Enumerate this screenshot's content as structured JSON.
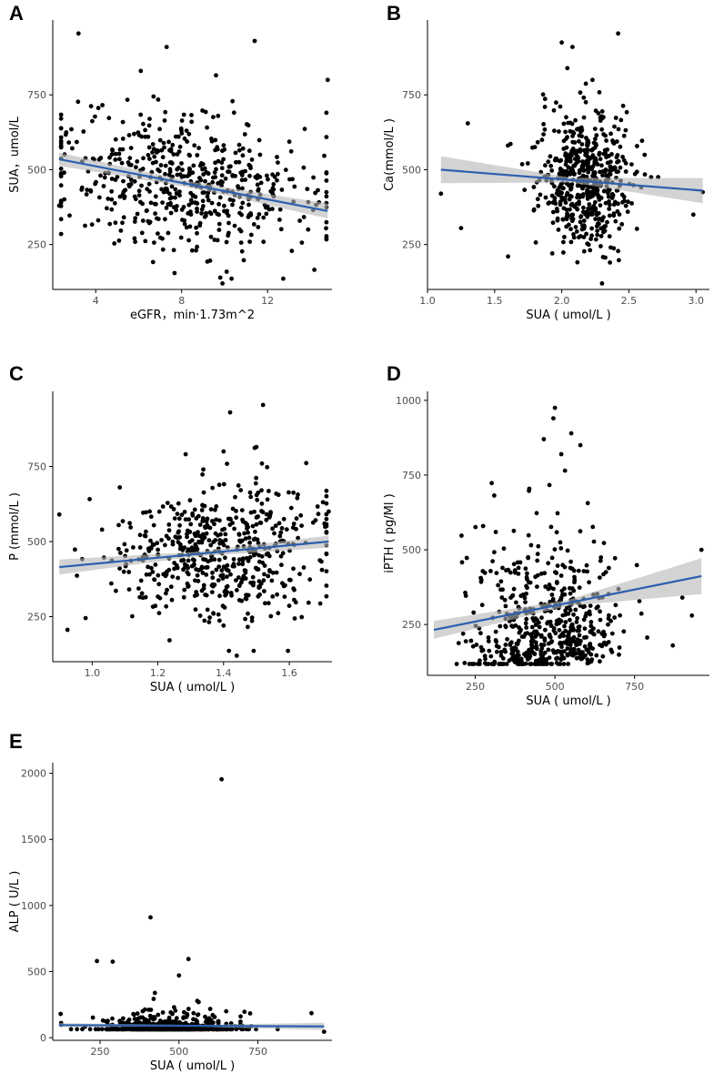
{
  "figure": {
    "panels": [
      "A",
      "B",
      "C",
      "D",
      "E"
    ]
  },
  "chart_data": [
    {
      "type": "scatter",
      "panel": "A",
      "xlabel": "eGFR，min·1.73m^2",
      "ylabel": "SUA，umol/L",
      "xlim": [
        2,
        15
      ],
      "ylim": [
        100,
        1000
      ],
      "xticks": [
        4,
        8,
        12
      ],
      "yticks": [
        250,
        500,
        750
      ],
      "x_center": 8.2,
      "x_spread": 2.6,
      "x_skew": 1.5,
      "y_center": 455,
      "y_spread": 110,
      "n_points": 560,
      "fit": {
        "x": [
          2.3,
          14.8
        ],
        "y": [
          535,
          362
        ]
      },
      "ci_halfwidth": [
        22,
        10,
        25
      ],
      "outliers": [
        [
          3.2,
          955
        ],
        [
          7.3,
          910
        ],
        [
          11.4,
          930
        ],
        [
          9.6,
          815
        ],
        [
          14.8,
          800
        ],
        [
          6.1,
          830
        ],
        [
          9.9,
          120
        ],
        [
          2.3,
          380
        ]
      ]
    },
    {
      "type": "scatter",
      "panel": "B",
      "xlabel": "SUA ( umol/L )",
      "ylabel": "Ca(mmol/L )",
      "xlim": [
        1.0,
        3.1
      ],
      "ylim": [
        100,
        1000
      ],
      "xticks": [
        "1.0",
        "1.5",
        "2.0",
        "2.5",
        "3.0"
      ],
      "yticks": [
        250,
        500,
        750
      ],
      "x_center": 2.17,
      "x_spread": 0.17,
      "x_skew": 1.0,
      "y_center": 470,
      "y_spread": 115,
      "n_points": 560,
      "fit": {
        "x": [
          1.1,
          3.05
        ],
        "y": [
          500,
          430
        ]
      },
      "ci_halfwidth": [
        45,
        8,
        42
      ],
      "outliers": [
        [
          2.42,
          955
        ],
        [
          2.0,
          925
        ],
        [
          2.08,
          910
        ],
        [
          1.1,
          420
        ],
        [
          1.25,
          305
        ],
        [
          1.6,
          210
        ],
        [
          2.98,
          350
        ],
        [
          3.05,
          425
        ],
        [
          2.3,
          120
        ],
        [
          1.3,
          655
        ]
      ]
    },
    {
      "type": "scatter",
      "panel": "C",
      "xlabel": "SUA ( umol/L )",
      "ylabel": "P (mmol/L )",
      "xlim": [
        0.88,
        1.73
      ],
      "ylim": [
        100,
        1000
      ],
      "xticks": [
        "1.0",
        "1.2",
        "1.4",
        "1.6"
      ],
      "yticks": [
        250,
        500,
        750
      ],
      "x_center": 1.4,
      "x_spread": 0.14,
      "x_skew": 1.3,
      "y_center": 465,
      "y_spread": 115,
      "n_points": 560,
      "fit": {
        "x": [
          0.9,
          1.72
        ],
        "y": [
          415,
          500
        ]
      },
      "ci_halfwidth": [
        25,
        8,
        20
      ],
      "outliers": [
        [
          1.42,
          930
        ],
        [
          1.52,
          955
        ],
        [
          1.4,
          800
        ],
        [
          1.5,
          815
        ],
        [
          0.9,
          590
        ],
        [
          0.98,
          245
        ],
        [
          1.44,
          120
        ],
        [
          1.72,
          600
        ]
      ]
    },
    {
      "type": "scatter",
      "panel": "D",
      "xlabel": "SUA ( umol/L )",
      "ylabel": "iPTH ( pg/Ml )",
      "xlim": [
        100,
        985
      ],
      "ylim": [
        80,
        1030
      ],
      "xticks": [
        250,
        500,
        750
      ],
      "yticks": [
        250,
        500,
        750,
        1000
      ],
      "x_center": 470,
      "x_spread": 115,
      "x_skew": 1.0,
      "y_center": 280,
      "y_spread": 120,
      "n_points": 580,
      "fit": {
        "x": [
          120,
          960
        ],
        "y": [
          232,
          412
        ]
      },
      "ci_halfwidth": [
        30,
        10,
        60
      ],
      "outliers": [
        [
          500,
          975
        ],
        [
          495,
          940
        ],
        [
          465,
          870
        ],
        [
          580,
          850
        ],
        [
          520,
          820
        ],
        [
          930,
          280
        ],
        [
          960,
          500
        ],
        [
          870,
          180
        ],
        [
          900,
          340
        ]
      ]
    },
    {
      "type": "scatter",
      "panel": "E",
      "xlabel": "SUA ( umol/L )",
      "ylabel": "ALP ( U/L )",
      "xlim": [
        100,
        985
      ],
      "ylim": [
        -20,
        2080
      ],
      "xticks": [
        250,
        500,
        750
      ],
      "yticks": [
        0,
        500,
        1000,
        1500,
        2000
      ],
      "x_center": 470,
      "x_spread": 105,
      "x_skew": 1.0,
      "y_center": 75,
      "y_spread": 60,
      "n_points": 620,
      "fit": {
        "x": [
          120,
          960
        ],
        "y": [
          95,
          85
        ]
      },
      "ci_halfwidth": [
        15,
        6,
        28
      ],
      "outliers": [
        [
          635,
          1955
        ],
        [
          410,
          910
        ],
        [
          530,
          595
        ],
        [
          240,
          580
        ],
        [
          290,
          575
        ],
        [
          125,
          180
        ],
        [
          920,
          185
        ],
        [
          960,
          45
        ],
        [
          500,
          470
        ]
      ]
    }
  ]
}
